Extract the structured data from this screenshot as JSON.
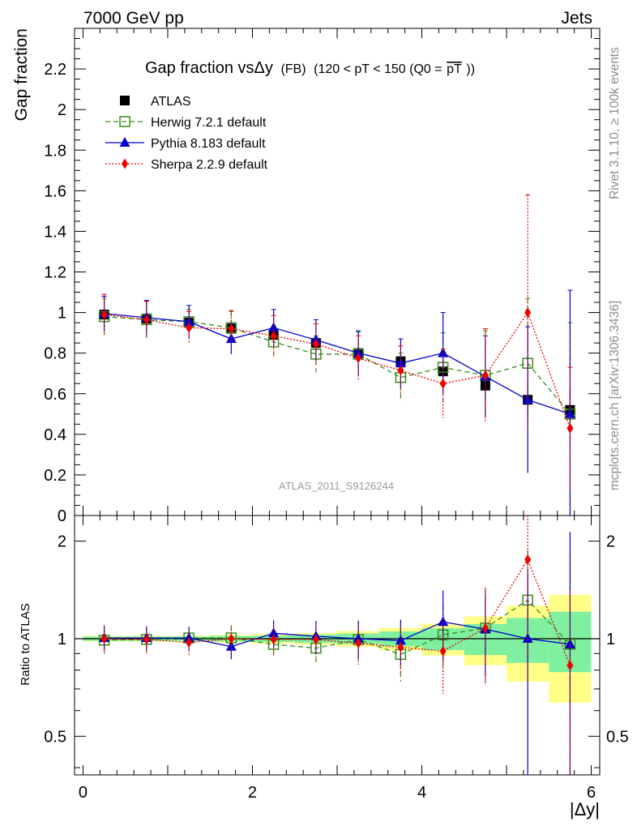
{
  "header": {
    "left": "7000 GeV pp",
    "right": "Jets",
    "side_top": "Rivet 3.1.10, ≥ 100k events",
    "side_bottom": "mcplots.cern.ch [arXiv:1306.3436]",
    "watermark": "ATLAS_2011_S9126244"
  },
  "colors": {
    "atlas": "#000000",
    "herwig": "#3a8a1c",
    "pythia": "#0000cc",
    "sherpa": "#ee0000",
    "band_inner": "#7ef0a0",
    "band_outer": "#ffff88"
  },
  "chart_data": {
    "type": "line",
    "title": "Gap fraction vsΔy",
    "title_small": "(FB)",
    "title_range": "(120 < pT < 150 (Q0 =",
    "title_pt": "pT",
    "title_close": "))",
    "xlabel": "|Δy|",
    "ylabel_top": "Gap fraction",
    "ylabel_bottom": "Ratio to ATLAS",
    "xlim": [
      -0.1,
      6.1
    ],
    "ylim_top": [
      0,
      2.4
    ],
    "ylim_ratio": [
      0.38,
      2.4
    ],
    "x_ticks": [
      "0",
      "2",
      "4",
      "6"
    ],
    "x_tick_values": [
      0,
      2,
      4,
      6
    ],
    "y_ticks_top": [
      "0",
      "0.2",
      "0.4",
      "0.6",
      "0.8",
      "1",
      "1.2",
      "1.4",
      "1.6",
      "1.8",
      "2",
      "2.2"
    ],
    "y_tick_values_top": [
      0,
      0.2,
      0.4,
      0.6,
      0.8,
      1.0,
      1.2,
      1.4,
      1.6,
      1.8,
      2.0,
      2.2
    ],
    "y_ticks_ratio": [
      "0.5",
      "1",
      "2"
    ],
    "y_tick_values_ratio": [
      0.5,
      1,
      2
    ],
    "x": [
      0.25,
      0.75,
      1.25,
      1.75,
      2.25,
      2.75,
      3.25,
      3.75,
      4.25,
      4.75,
      5.25,
      5.75
    ],
    "data": {
      "name": "ATLAS",
      "values": [
        0.99,
        0.97,
        0.95,
        0.92,
        0.89,
        0.85,
        0.8,
        0.76,
        0.71,
        0.64,
        0.57,
        0.52
      ],
      "err": [
        0.015,
        0.015,
        0.015,
        0.018,
        0.02,
        0.025,
        0.03,
        0.04,
        0.055,
        0.07,
        0.09,
        0.11
      ],
      "band_err": [
        0.015,
        0.015,
        0.015,
        0.018,
        0.02,
        0.025,
        0.03,
        0.04,
        0.055,
        0.07,
        0.09,
        0.11
      ],
      "band_err2": [
        0.02,
        0.02,
        0.02,
        0.025,
        0.03,
        0.035,
        0.045,
        0.06,
        0.08,
        0.11,
        0.15,
        0.19
      ]
    },
    "series": [
      {
        "name": "Herwig 7.2.1 default",
        "key": "herwig",
        "marker": "open-square",
        "dash": "6,4",
        "values": [
          0.98,
          0.965,
          0.955,
          0.925,
          0.855,
          0.795,
          0.795,
          0.68,
          0.73,
          0.69,
          0.75,
          0.5
        ],
        "err": [
          0.09,
          0.09,
          0.06,
          0.08,
          0.07,
          0.09,
          0.11,
          0.12,
          0.17,
          0.22,
          0.32,
          0.45
        ]
      },
      {
        "name": "Pythia 8.183 default",
        "key": "pythia",
        "marker": "triangle",
        "dash": "",
        "values": [
          0.995,
          0.975,
          0.955,
          0.87,
          0.925,
          0.865,
          0.8,
          0.75,
          0.8,
          0.685,
          0.57,
          0.5
        ],
        "err": [
          0.085,
          0.085,
          0.08,
          0.075,
          0.09,
          0.1,
          0.11,
          0.12,
          0.2,
          0.2,
          0.36,
          0.61
        ]
      },
      {
        "name": "Sherpa 2.2.9 default",
        "key": "sherpa",
        "marker": "diamond",
        "dash": "2,2",
        "values": [
          0.99,
          0.965,
          0.925,
          0.92,
          0.885,
          0.845,
          0.775,
          0.715,
          0.65,
          0.69,
          1.0,
          0.43
        ],
        "err": [
          0.1,
          0.09,
          0.08,
          0.09,
          0.1,
          0.1,
          0.11,
          0.12,
          0.17,
          0.23,
          0.58,
          0.3
        ]
      }
    ]
  }
}
